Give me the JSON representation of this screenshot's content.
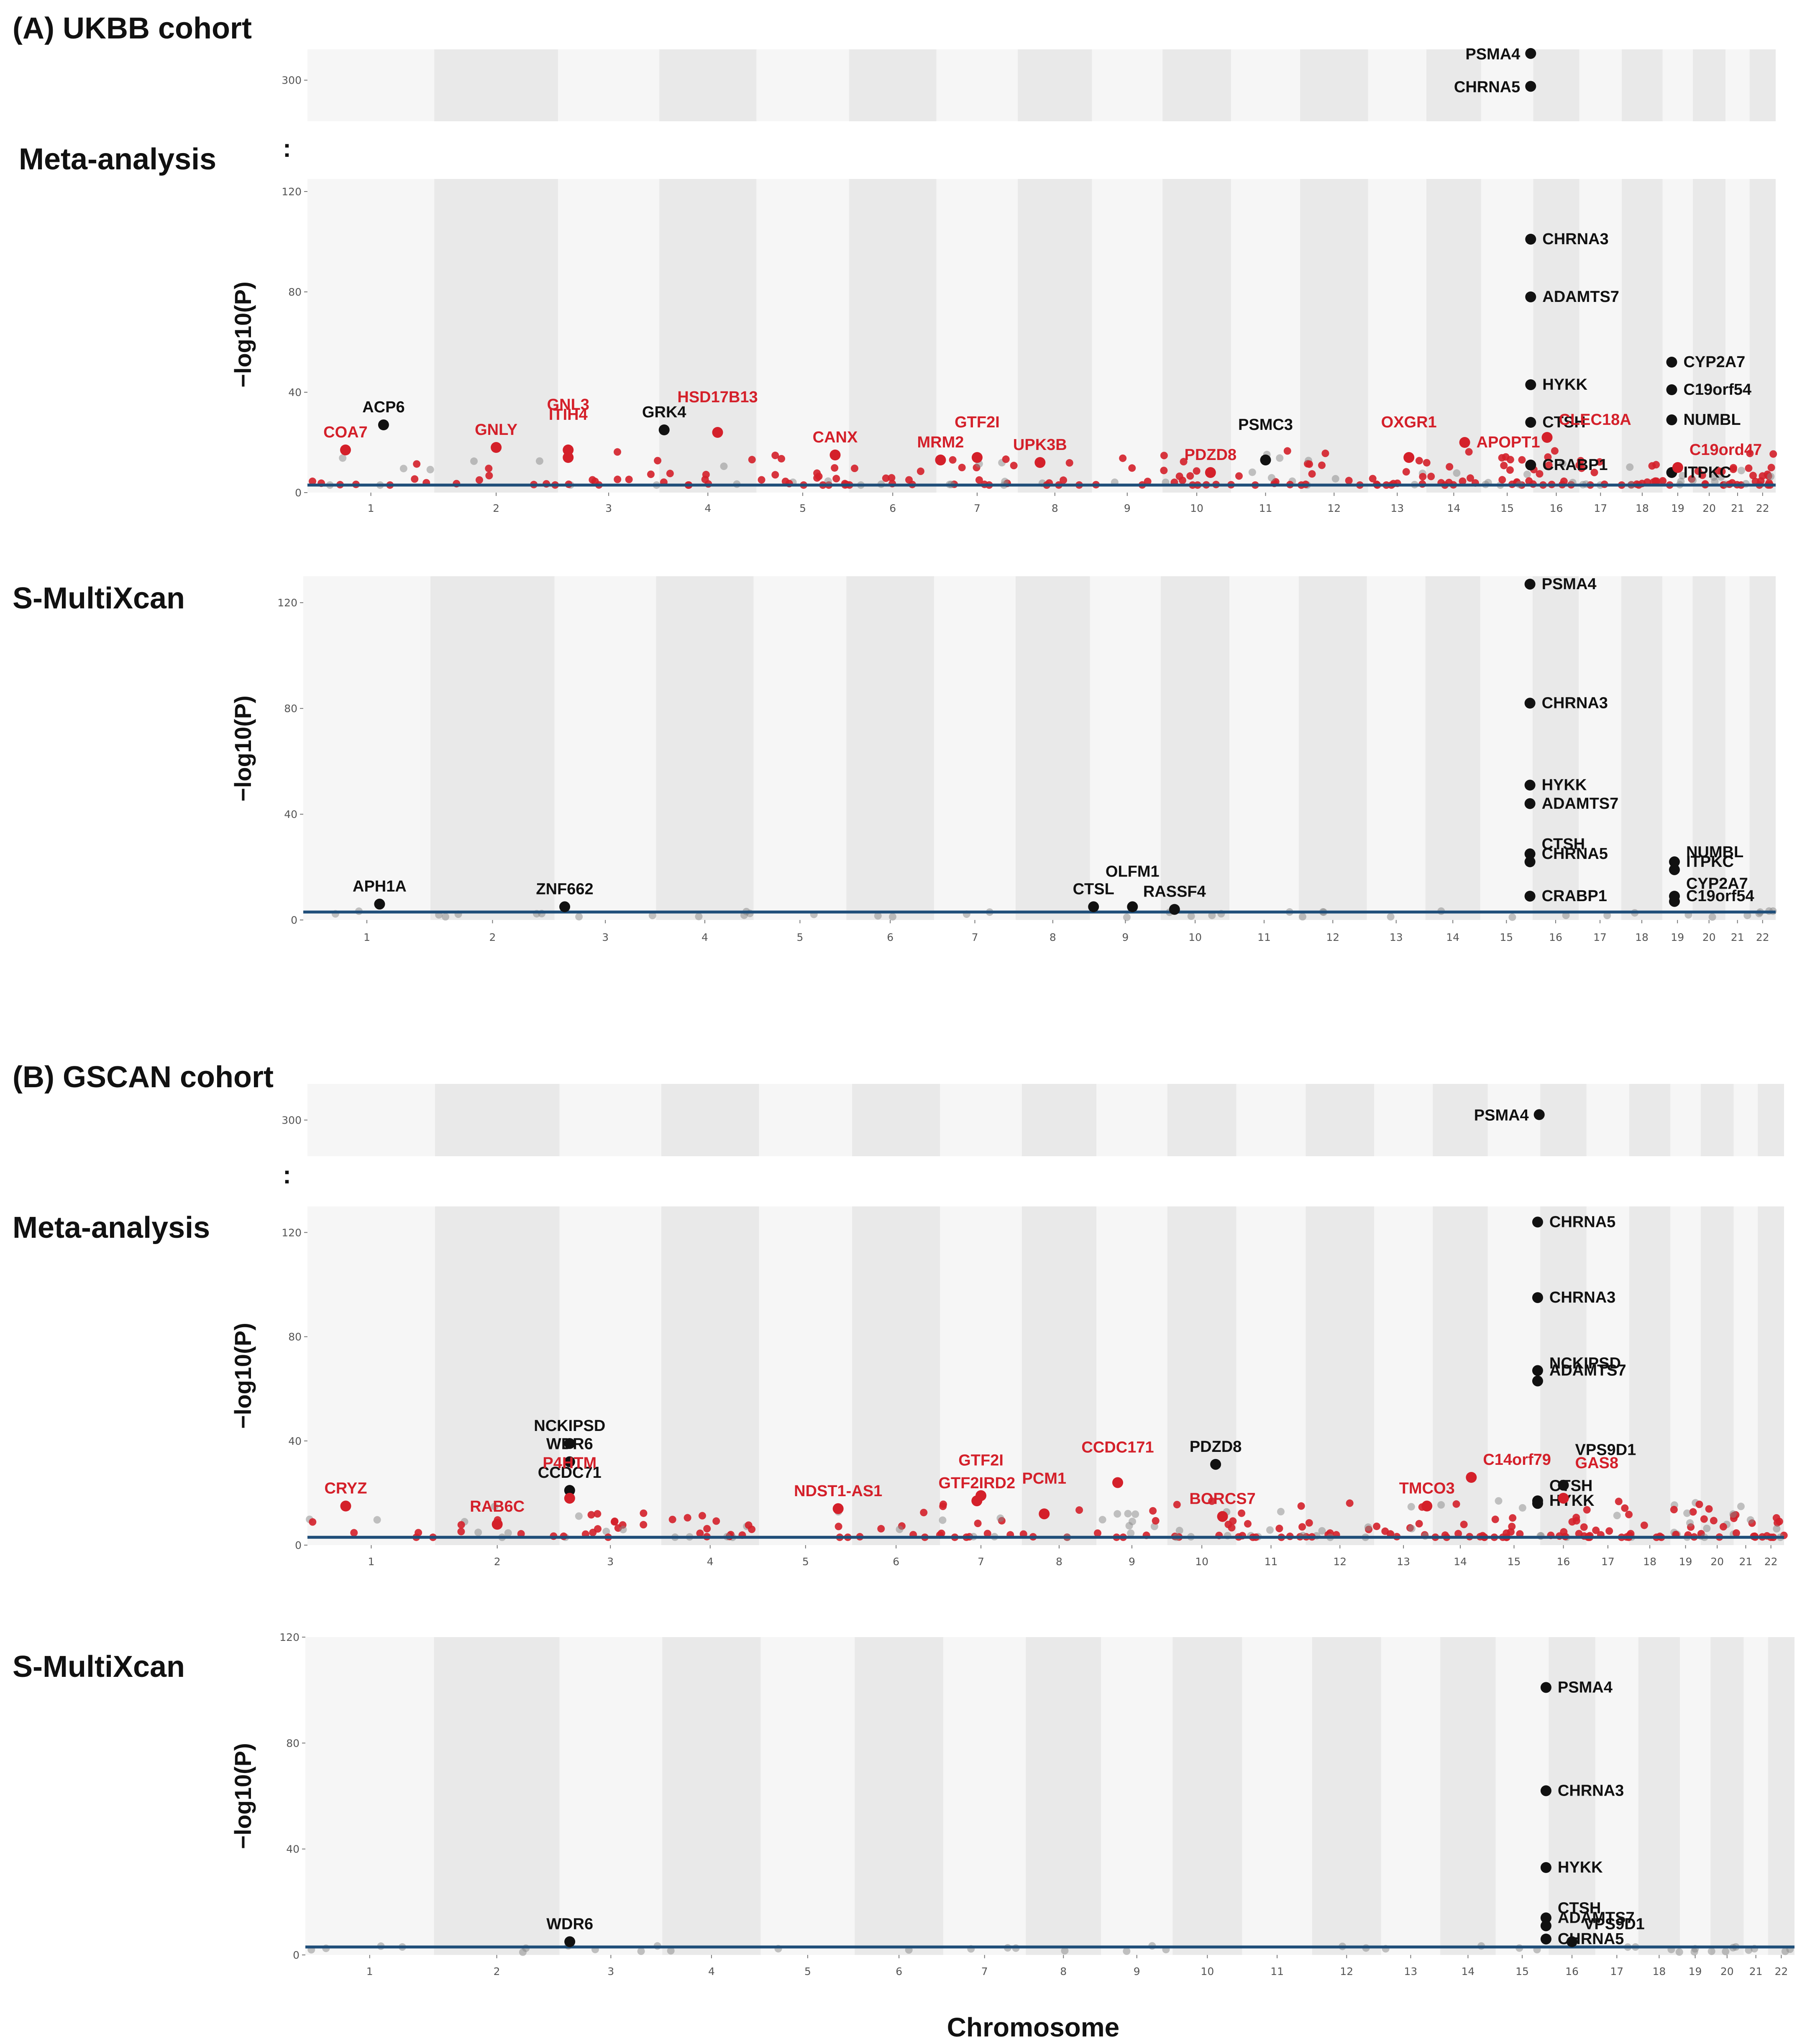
{
  "figure": {
    "xlabel": "Chromosome",
    "ylabel": "−log10(P)",
    "break_symbol": ":",
    "colors": {
      "significant_red": "#d4202a",
      "black": "#111111",
      "threshold": "#1f4e79",
      "band_dark": "#e9e9e9",
      "band_light": "#f6f6f6"
    }
  },
  "panels": [
    {
      "title": "(A) UKBB cohort"
    },
    {
      "title": "(B) GSCAN cohort"
    }
  ],
  "chart_data": [
    {
      "id": "ukbb-meta",
      "type": "scatter",
      "title": "Meta-analysis",
      "ylabel": "−log10(P)",
      "xlabel": "Chromosome",
      "categories": [
        "1",
        "2",
        "3",
        "4",
        "5",
        "6",
        "7",
        "8",
        "9",
        "10",
        "11",
        "12",
        "13",
        "14",
        "15",
        "16",
        "17",
        "18",
        "19",
        "20",
        "21",
        "22"
      ],
      "ylim": [
        0,
        125
      ],
      "yticks": [
        0,
        40,
        80,
        120
      ],
      "break_ylim": [
        280,
        315
      ],
      "break_yticks": [
        300
      ],
      "threshold": 3,
      "labeled_points": [
        {
          "gene": "PSMA4",
          "chr": 15,
          "pos": 0.95,
          "y": 313,
          "color": "black",
          "panel": "upper"
        },
        {
          "gene": "CHRNA5",
          "chr": 15,
          "pos": 0.95,
          "y": 297,
          "color": "black",
          "panel": "upper"
        },
        {
          "gene": "CHRNA3",
          "chr": 15,
          "pos": 0.95,
          "y": 101,
          "color": "black"
        },
        {
          "gene": "ADAMTS7",
          "chr": 15,
          "pos": 0.95,
          "y": 78,
          "color": "black"
        },
        {
          "gene": "HYKK",
          "chr": 15,
          "pos": 0.95,
          "y": 43,
          "color": "black"
        },
        {
          "gene": "CTSH",
          "chr": 15,
          "pos": 0.95,
          "y": 28,
          "color": "black"
        },
        {
          "gene": "CRABP1",
          "chr": 15,
          "pos": 0.95,
          "y": 11,
          "color": "black"
        },
        {
          "gene": "CLEC18A",
          "chr": 16,
          "pos": 0.3,
          "y": 22,
          "color": "red"
        },
        {
          "gene": "APOPT1",
          "chr": 14,
          "pos": 0.7,
          "y": 20,
          "color": "red"
        },
        {
          "gene": "CYP2A7",
          "chr": 19,
          "pos": 0.3,
          "y": 52,
          "color": "black"
        },
        {
          "gene": "C19orf54",
          "chr": 19,
          "pos": 0.3,
          "y": 41,
          "color": "black"
        },
        {
          "gene": "NUMBL",
          "chr": 19,
          "pos": 0.3,
          "y": 29,
          "color": "black"
        },
        {
          "gene": "ITPKC",
          "chr": 19,
          "pos": 0.3,
          "y": 8,
          "color": "black"
        },
        {
          "gene": "C19ord47",
          "chr": 19,
          "pos": 0.5,
          "y": 10,
          "color": "red"
        },
        {
          "gene": "ACP6",
          "chr": 1,
          "pos": 0.6,
          "y": 27,
          "color": "black"
        },
        {
          "gene": "COA7",
          "chr": 1,
          "pos": 0.3,
          "y": 17,
          "color": "red"
        },
        {
          "gene": "GNLY",
          "chr": 2,
          "pos": 0.5,
          "y": 18,
          "color": "red"
        },
        {
          "gene": "ITIH4",
          "chr": 3,
          "pos": 0.1,
          "y": 17,
          "color": "red"
        },
        {
          "gene": "GNL3",
          "chr": 3,
          "pos": 0.1,
          "y": 14,
          "color": "red"
        },
        {
          "gene": "GRK4",
          "chr": 4,
          "pos": 0.05,
          "y": 25,
          "color": "black"
        },
        {
          "gene": "HSD17B13",
          "chr": 4,
          "pos": 0.6,
          "y": 24,
          "color": "red"
        },
        {
          "gene": "CANX",
          "chr": 5,
          "pos": 0.85,
          "y": 15,
          "color": "red"
        },
        {
          "gene": "MRM2",
          "chr": 7,
          "pos": 0.05,
          "y": 13,
          "color": "red"
        },
        {
          "gene": "GTF2I",
          "chr": 7,
          "pos": 0.5,
          "y": 14,
          "color": "red"
        },
        {
          "gene": "UPK3B",
          "chr": 8,
          "pos": 0.3,
          "y": 12,
          "color": "red"
        },
        {
          "gene": "PDZD8",
          "chr": 10,
          "pos": 0.7,
          "y": 8,
          "color": "red"
        },
        {
          "gene": "PSMC3",
          "chr": 11,
          "pos": 0.5,
          "y": 13,
          "color": "black"
        },
        {
          "gene": "OXGR1",
          "chr": 13,
          "pos": 0.7,
          "y": 14,
          "color": "red"
        }
      ]
    },
    {
      "id": "ukbb-smultixcan",
      "type": "scatter",
      "title": "S-MultiXcan",
      "ylabel": "−log10(P)",
      "xlabel": "Chromosome",
      "categories": [
        "1",
        "2",
        "3",
        "4",
        "5",
        "6",
        "7",
        "8",
        "9",
        "10",
        "11",
        "12",
        "13",
        "14",
        "15",
        "16",
        "17",
        "18",
        "19",
        "20",
        "21",
        "22"
      ],
      "ylim": [
        0,
        130
      ],
      "yticks": [
        0,
        40,
        80,
        120
      ],
      "threshold": 3,
      "labeled_points": [
        {
          "gene": "PSMA4",
          "chr": 15,
          "pos": 0.95,
          "y": 127,
          "color": "black"
        },
        {
          "gene": "CHRNA3",
          "chr": 15,
          "pos": 0.95,
          "y": 82,
          "color": "black"
        },
        {
          "gene": "HYKK",
          "chr": 15,
          "pos": 0.95,
          "y": 51,
          "color": "black"
        },
        {
          "gene": "ADAMTS7",
          "chr": 15,
          "pos": 0.95,
          "y": 44,
          "color": "black"
        },
        {
          "gene": "CHRNA5",
          "chr": 15,
          "pos": 0.95,
          "y": 25,
          "color": "black"
        },
        {
          "gene": "CTSH",
          "chr": 15,
          "pos": 0.95,
          "y": 22,
          "color": "black"
        },
        {
          "gene": "CRABP1",
          "chr": 15,
          "pos": 0.95,
          "y": 9,
          "color": "black"
        },
        {
          "gene": "ITPKC",
          "chr": 19,
          "pos": 0.4,
          "y": 22,
          "color": "black"
        },
        {
          "gene": "NUMBL",
          "chr": 19,
          "pos": 0.4,
          "y": 19,
          "color": "black"
        },
        {
          "gene": "C19orf54",
          "chr": 19,
          "pos": 0.4,
          "y": 9,
          "color": "black"
        },
        {
          "gene": "CYP2A7",
          "chr": 19,
          "pos": 0.4,
          "y": 7,
          "color": "black"
        },
        {
          "gene": "APH1A",
          "chr": 1,
          "pos": 0.6,
          "y": 6,
          "color": "black"
        },
        {
          "gene": "ZNF662",
          "chr": 3,
          "pos": 0.1,
          "y": 5,
          "color": "black"
        },
        {
          "gene": "CTSL",
          "chr": 9,
          "pos": 0.05,
          "y": 5,
          "color": "black"
        },
        {
          "gene": "OLFM1",
          "chr": 9,
          "pos": 0.6,
          "y": 5,
          "color": "black"
        },
        {
          "gene": "RASSF4",
          "chr": 10,
          "pos": 0.2,
          "y": 4,
          "color": "black"
        }
      ]
    },
    {
      "id": "gscan-meta",
      "type": "scatter",
      "title": "Meta-analysis",
      "ylabel": "−log10(P)",
      "xlabel": "Chromosome",
      "categories": [
        "1",
        "2",
        "3",
        "4",
        "5",
        "6",
        "7",
        "8",
        "9",
        "10",
        "11",
        "12",
        "13",
        "14",
        "15",
        "16",
        "17",
        "18",
        "19",
        "20",
        "21",
        "22"
      ],
      "ylim": [
        0,
        130
      ],
      "yticks": [
        0,
        40,
        80,
        120
      ],
      "break_ylim": [
        280,
        320
      ],
      "break_yticks": [
        300
      ],
      "threshold": 3,
      "labeled_points": [
        {
          "gene": "PSMA4",
          "chr": 15,
          "pos": 0.98,
          "y": 303,
          "color": "black",
          "panel": "upper"
        },
        {
          "gene": "CHRNA5",
          "chr": 15,
          "pos": 0.95,
          "y": 124,
          "color": "black"
        },
        {
          "gene": "CHRNA3",
          "chr": 15,
          "pos": 0.95,
          "y": 95,
          "color": "black"
        },
        {
          "gene": "ADAMTS7",
          "chr": 15,
          "pos": 0.95,
          "y": 67,
          "color": "black"
        },
        {
          "gene": "NCKIPSD",
          "chr": 15,
          "pos": 0.95,
          "y": 63,
          "color": "black"
        },
        {
          "gene": "HYKK",
          "chr": 15,
          "pos": 0.95,
          "y": 17,
          "color": "black"
        },
        {
          "gene": "CTSH",
          "chr": 15,
          "pos": 0.95,
          "y": 16,
          "color": "black"
        },
        {
          "gene": "GAS8",
          "chr": 16,
          "pos": 0.5,
          "y": 18,
          "color": "red"
        },
        {
          "gene": "VPS9D1",
          "chr": 16,
          "pos": 0.5,
          "y": 23,
          "color": "black"
        },
        {
          "gene": "C14orf79",
          "chr": 14,
          "pos": 0.7,
          "y": 26,
          "color": "red"
        },
        {
          "gene": "TMCO3",
          "chr": 13,
          "pos": 0.9,
          "y": 15,
          "color": "red"
        },
        {
          "gene": "NCKIPSD",
          "chr": 3,
          "pos": 0.1,
          "y": 39,
          "color": "black"
        },
        {
          "gene": "WDR6",
          "chr": 3,
          "pos": 0.1,
          "y": 32,
          "color": "black"
        },
        {
          "gene": "CCDC71",
          "chr": 3,
          "pos": 0.1,
          "y": 21,
          "color": "black"
        },
        {
          "gene": "P4HTM",
          "chr": 3,
          "pos": 0.1,
          "y": 18,
          "color": "red"
        },
        {
          "gene": "CRYZ",
          "chr": 1,
          "pos": 0.3,
          "y": 15,
          "color": "red"
        },
        {
          "gene": "RAB6C",
          "chr": 2,
          "pos": 0.5,
          "y": 8,
          "color": "red"
        },
        {
          "gene": "NDST1-AS1",
          "chr": 5,
          "pos": 0.85,
          "y": 14,
          "color": "red"
        },
        {
          "gene": "GTF2IRD2",
          "chr": 7,
          "pos": 0.45,
          "y": 17,
          "color": "red"
        },
        {
          "gene": "GTF2I",
          "chr": 7,
          "pos": 0.5,
          "y": 19,
          "color": "red"
        },
        {
          "gene": "PCM1",
          "chr": 8,
          "pos": 0.3,
          "y": 12,
          "color": "red"
        },
        {
          "gene": "CCDC171",
          "chr": 9,
          "pos": 0.3,
          "y": 24,
          "color": "red"
        },
        {
          "gene": "PDZD8",
          "chr": 10,
          "pos": 0.7,
          "y": 31,
          "color": "black"
        },
        {
          "gene": "BORCS7",
          "chr": 10,
          "pos": 0.8,
          "y": 11,
          "color": "red"
        }
      ]
    },
    {
      "id": "gscan-smultixcan",
      "type": "scatter",
      "title": "S-MultiXcan",
      "ylabel": "−log10(P)",
      "xlabel": "Chromosome",
      "categories": [
        "1",
        "2",
        "3",
        "4",
        "5",
        "6",
        "7",
        "8",
        "9",
        "10",
        "11",
        "12",
        "13",
        "14",
        "15",
        "16",
        "17",
        "18",
        "19",
        "20",
        "21",
        "22"
      ],
      "ylim": [
        0,
        120
      ],
      "yticks": [
        0,
        40,
        80,
        120
      ],
      "threshold": 3,
      "labeled_points": [
        {
          "gene": "PSMA4",
          "chr": 15,
          "pos": 0.95,
          "y": 101,
          "color": "black"
        },
        {
          "gene": "CHRNA3",
          "chr": 15,
          "pos": 0.95,
          "y": 62,
          "color": "black"
        },
        {
          "gene": "HYKK",
          "chr": 15,
          "pos": 0.95,
          "y": 33,
          "color": "black"
        },
        {
          "gene": "ADAMTS7",
          "chr": 15,
          "pos": 0.95,
          "y": 14,
          "color": "black"
        },
        {
          "gene": "CTSH",
          "chr": 15,
          "pos": 0.95,
          "y": 11,
          "color": "black"
        },
        {
          "gene": "CHRNA5",
          "chr": 15,
          "pos": 0.95,
          "y": 6,
          "color": "black"
        },
        {
          "gene": "VPS9D1",
          "chr": 16,
          "pos": 0.5,
          "y": 5,
          "color": "black"
        },
        {
          "gene": "WDR6",
          "chr": 3,
          "pos": 0.1,
          "y": 5,
          "color": "black"
        }
      ]
    }
  ]
}
